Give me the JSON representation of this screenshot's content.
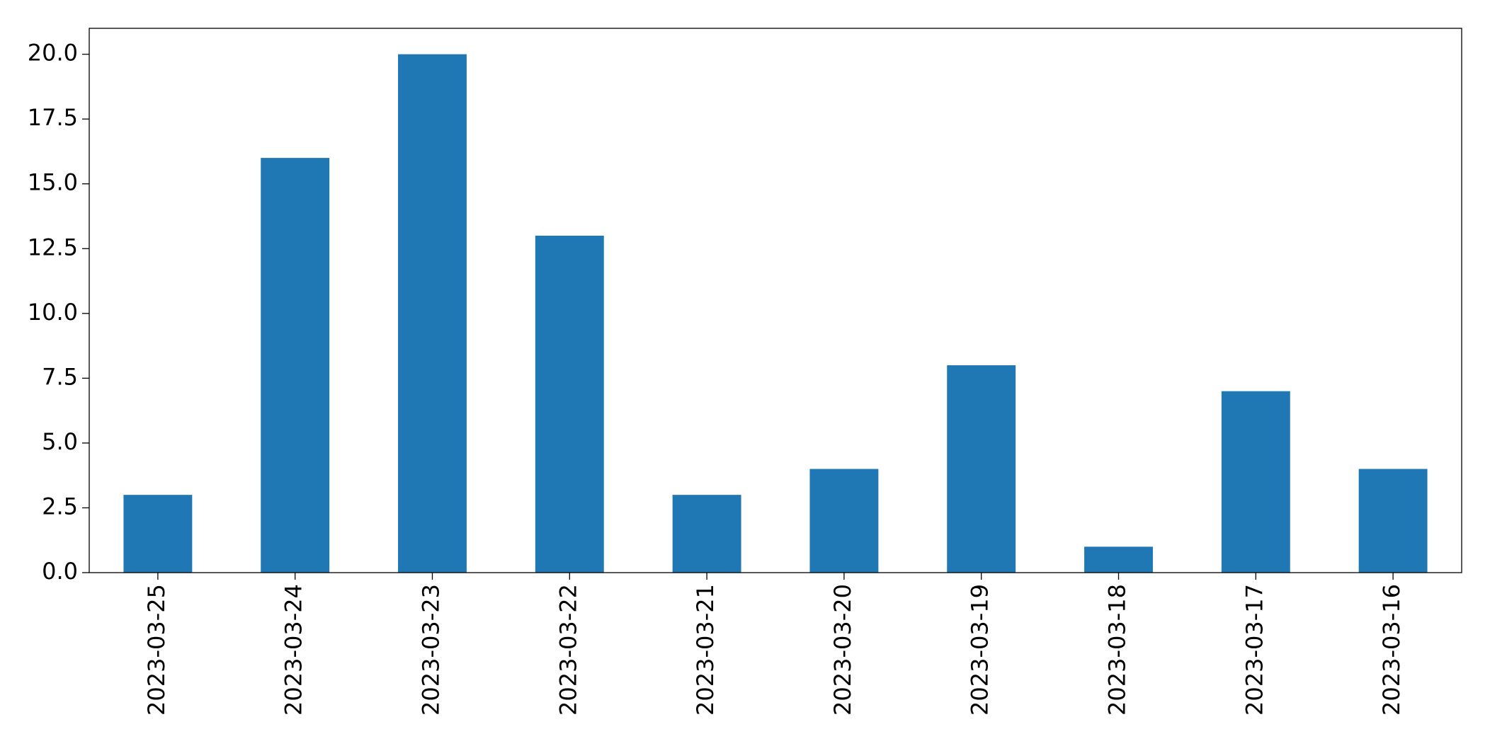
{
  "chart_data": {
    "type": "bar",
    "categories": [
      "2023-03-25",
      "2023-03-24",
      "2023-03-23",
      "2023-03-22",
      "2023-03-21",
      "2023-03-20",
      "2023-03-19",
      "2023-03-18",
      "2023-03-17",
      "2023-03-16"
    ],
    "values": [
      3,
      16,
      20,
      13,
      3,
      4,
      8,
      1,
      7,
      4
    ],
    "color": "#1f77b4",
    "ylim": [
      0,
      21
    ],
    "yticks": [
      {
        "value": 0,
        "label": "0.0"
      },
      2.5,
      {
        "value": 5,
        "label": "5.0"
      },
      7.5,
      {
        "value": 10,
        "label": "10.0"
      },
      12.5,
      {
        "value": 15,
        "label": "15.0"
      },
      17.5,
      {
        "value": 20,
        "label": "20.0"
      }
    ],
    "grid": false
  }
}
